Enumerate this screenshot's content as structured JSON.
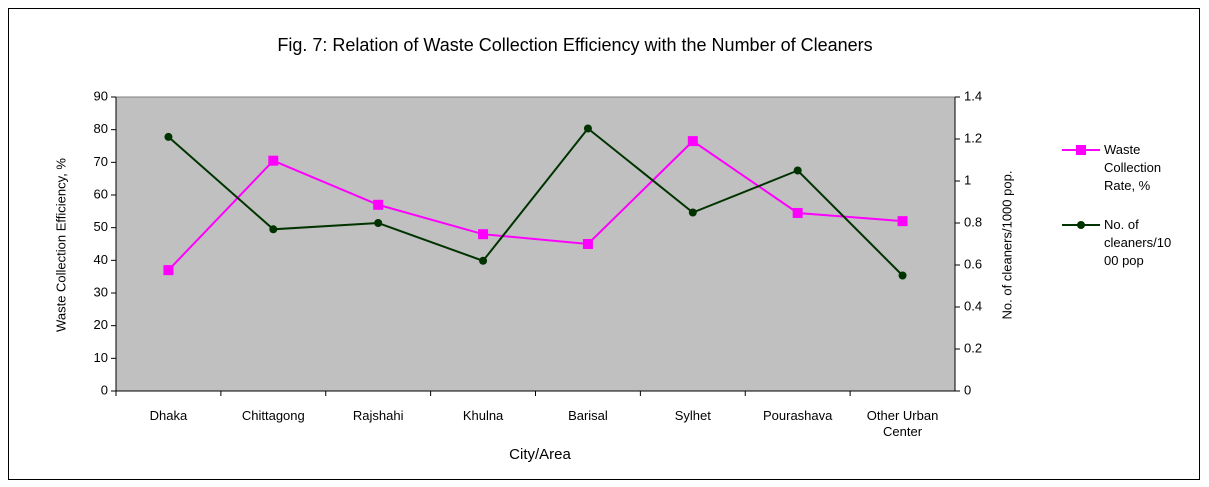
{
  "chart_data": {
    "type": "line",
    "title": "Fig. 7: Relation of Waste Collection Efficiency with the Number of Cleaners",
    "xlabel": "City/Area",
    "ylabel": "Waste Collection Efficiency, %",
    "y2label": "No. of cleaners/1000 pop.",
    "categories": [
      "Dhaka",
      "Chittagong",
      "Rajshahi",
      "Khulna",
      "Barisal",
      "Sylhet",
      "Pourashava",
      "Other Urban Center"
    ],
    "series": [
      {
        "name": "Waste Collection Rate, %",
        "color": "#ff00ff",
        "marker": "square",
        "axis": "y",
        "values": [
          37,
          70.5,
          57,
          48,
          45,
          76.5,
          54.5,
          52
        ]
      },
      {
        "name": "No. of cleaners/1000 pop",
        "color": "#003300",
        "marker": "circle",
        "axis": "y2",
        "values": [
          1.21,
          0.77,
          0.8,
          0.62,
          1.25,
          0.85,
          1.05,
          0.55
        ]
      }
    ],
    "ylim": [
      0,
      90
    ],
    "yticks": [
      0,
      10,
      20,
      30,
      40,
      50,
      60,
      70,
      80,
      90
    ],
    "y2lim": [
      0,
      1.4
    ],
    "y2ticks": [
      0,
      0.2,
      0.4,
      0.6,
      0.8,
      1,
      1.2,
      1.4
    ],
    "plot_background": "#c0c0c0",
    "legend": "right"
  }
}
